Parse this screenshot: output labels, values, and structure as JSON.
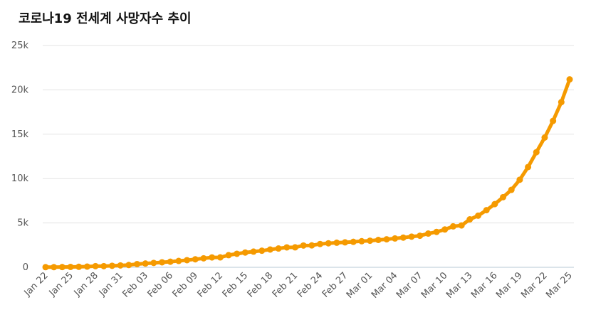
{
  "title": "코로나19 전세계 사망자수 추이",
  "chart_data": {
    "type": "line",
    "title": "코로나19 전세계 사망자수 추이",
    "xlabel": "",
    "ylabel": "",
    "ylim": [
      0,
      25000
    ],
    "grid": true,
    "legend": "none",
    "color": "#f59a00",
    "y_ticks": [
      0,
      5000,
      10000,
      15000,
      20000,
      25000
    ],
    "y_tick_labels": [
      "0",
      "5k",
      "10k",
      "15k",
      "20k",
      "25k"
    ],
    "x_tick_labels": [
      "Jan 22",
      "Jan 25",
      "Jan 28",
      "Jan 31",
      "Feb 03",
      "Feb 06",
      "Feb 09",
      "Feb 12",
      "Feb 15",
      "Feb 18",
      "Feb 21",
      "Feb 24",
      "Feb 27",
      "Mar 01",
      "Mar 04",
      "Mar 07",
      "Mar 10",
      "Mar 13",
      "Mar 16",
      "Mar 19",
      "Mar 22",
      "Mar 25"
    ],
    "x": [
      "Jan 22",
      "Jan 23",
      "Jan 24",
      "Jan 25",
      "Jan 26",
      "Jan 27",
      "Jan 28",
      "Jan 29",
      "Jan 30",
      "Jan 31",
      "Feb 01",
      "Feb 02",
      "Feb 03",
      "Feb 04",
      "Feb 05",
      "Feb 06",
      "Feb 07",
      "Feb 08",
      "Feb 09",
      "Feb 10",
      "Feb 11",
      "Feb 12",
      "Feb 13",
      "Feb 14",
      "Feb 15",
      "Feb 16",
      "Feb 17",
      "Feb 18",
      "Feb 19",
      "Feb 20",
      "Feb 21",
      "Feb 22",
      "Feb 23",
      "Feb 24",
      "Feb 25",
      "Feb 26",
      "Feb 27",
      "Feb 28",
      "Feb 29",
      "Mar 01",
      "Mar 02",
      "Mar 03",
      "Mar 04",
      "Mar 05",
      "Mar 06",
      "Mar 07",
      "Mar 08",
      "Mar 09",
      "Mar 10",
      "Mar 11",
      "Mar 12",
      "Mar 13",
      "Mar 14",
      "Mar 15",
      "Mar 16",
      "Mar 17",
      "Mar 18",
      "Mar 19",
      "Mar 20",
      "Mar 21",
      "Mar 22",
      "Mar 23",
      "Mar 24",
      "Mar 25"
    ],
    "series": [
      {
        "values": [
          17,
          18,
          26,
          42,
          56,
          82,
          131,
          133,
          171,
          213,
          259,
          362,
          426,
          492,
          564,
          634,
          719,
          806,
          906,
          1013,
          1113,
          1118,
          1371,
          1523,
          1666,
          1770,
          1868,
          2007,
          2122,
          2247,
          2251,
          2458,
          2469,
          2629,
          2708,
          2770,
          2814,
          2872,
          2941,
          2996,
          3085,
          3160,
          3254,
          3348,
          3460,
          3558,
          3802,
          3988,
          4262,
          4615,
          4720,
          5404,
          5819,
          6440,
          7126,
          7905,
          8733,
          9867,
          11299,
          12973,
          14623,
          16497,
          18615,
          21181
        ]
      }
    ]
  }
}
